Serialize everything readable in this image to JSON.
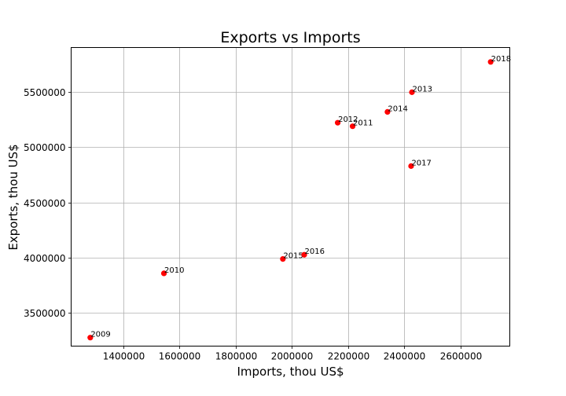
{
  "chart_data": {
    "type": "scatter",
    "title": "Exports vs Imports",
    "xlabel": "Imports, thou US$",
    "ylabel": "Exports, thou US$",
    "xlim": [
      1215000,
      2775000
    ],
    "ylim": [
      3200000,
      5900000
    ],
    "xticks": [
      1400000,
      1600000,
      1800000,
      2000000,
      2200000,
      2400000,
      2600000
    ],
    "yticks": [
      3500000,
      4000000,
      4500000,
      5000000,
      5500000
    ],
    "grid": true,
    "marker_color": "#ff0000",
    "points": [
      {
        "label": "2009",
        "x": 1283000,
        "y": 3277000
      },
      {
        "label": "2010",
        "x": 1545000,
        "y": 3858000
      },
      {
        "label": "2011",
        "x": 2216000,
        "y": 5188000
      },
      {
        "label": "2012",
        "x": 2163000,
        "y": 5220000
      },
      {
        "label": "2013",
        "x": 2427000,
        "y": 5496000
      },
      {
        "label": "2014",
        "x": 2340000,
        "y": 5318000
      },
      {
        "label": "2015",
        "x": 1968000,
        "y": 3988000
      },
      {
        "label": "2016",
        "x": 2044000,
        "y": 4026000
      },
      {
        "label": "2017",
        "x": 2424000,
        "y": 4828000
      },
      {
        "label": "2018",
        "x": 2707000,
        "y": 5770000
      }
    ]
  }
}
